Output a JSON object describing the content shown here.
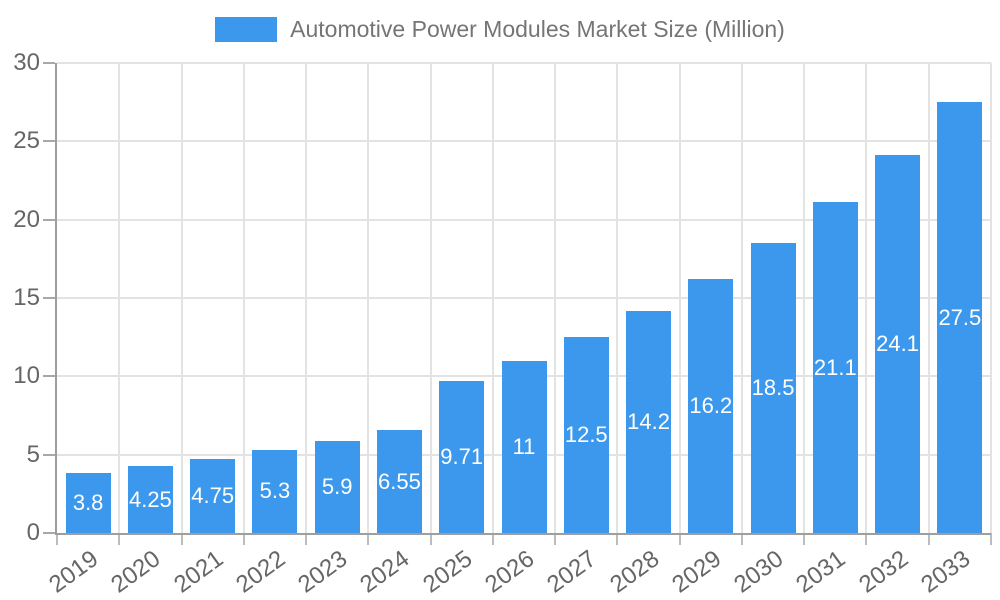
{
  "legend": {
    "label": "Automotive Power Modules Market Size (Million)",
    "swatch_color": "#3b98ec",
    "text_color": "#757575"
  },
  "chart_data": {
    "type": "bar",
    "title": "Automotive Power Modules Market Size (Million)",
    "categories": [
      "2019",
      "2020",
      "2021",
      "2022",
      "2023",
      "2024",
      "2025",
      "2026",
      "2027",
      "2028",
      "2029",
      "2030",
      "2031",
      "2032",
      "2033"
    ],
    "values": [
      3.8,
      4.25,
      4.75,
      5.3,
      5.9,
      6.55,
      9.71,
      11,
      12.5,
      14.2,
      16.2,
      18.5,
      21.1,
      24.1,
      27.5
    ],
    "bar_labels": [
      "3.8",
      "4.25",
      "4.75",
      "5.3",
      "5.9",
      "6.55",
      "9.71",
      "11",
      "12.5",
      "14.2",
      "16.2",
      "18.5",
      "21.1",
      "24.1",
      "27.5"
    ],
    "xlabel": "",
    "ylabel": "",
    "ylim": [
      0,
      30
    ],
    "yticks": [
      0,
      5,
      10,
      15,
      20,
      25,
      30
    ],
    "grid": true,
    "legend_position": "top",
    "bar_color": "#3b98ec",
    "bar_label_color": "#ffffff",
    "axis_label_color": "#666666",
    "gridline_color": "#e3e3e3",
    "axis_line_color": "#9e9e9e",
    "y_tick_color": "#a8a8a8",
    "x_tick_color": "#bdbdbd",
    "x_label_rotation_deg": -36
  }
}
